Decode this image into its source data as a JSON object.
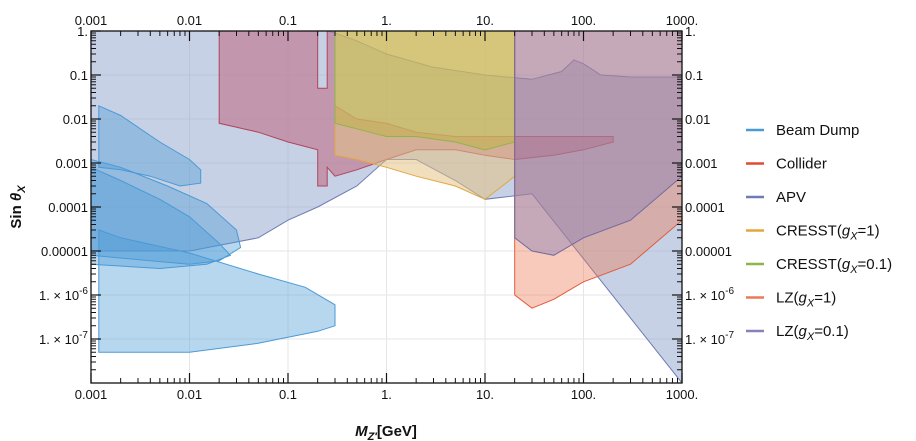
{
  "chart_data": {
    "type": "area",
    "xlabel": "M_Z'[GeV]",
    "ylabel": "Sin θ_X",
    "x_scale": "log",
    "y_scale": "log",
    "xlim": [
      0.001,
      1000
    ],
    "ylim": [
      1e-08,
      1
    ],
    "grid": true,
    "legend_position": "right",
    "x_ticks": [
      {
        "value": 0.001,
        "label": "0.001"
      },
      {
        "value": 0.01,
        "label": "0.01"
      },
      {
        "value": 0.1,
        "label": "0.1"
      },
      {
        "value": 1,
        "label": "1."
      },
      {
        "value": 10,
        "label": "10."
      },
      {
        "value": 100,
        "label": "100."
      },
      {
        "value": 1000,
        "label": "1000."
      }
    ],
    "y_ticks": [
      {
        "value": 1,
        "label": "1."
      },
      {
        "value": 0.1,
        "label": "0.1"
      },
      {
        "value": 0.01,
        "label": "0.01"
      },
      {
        "value": 0.001,
        "label": "0.001"
      },
      {
        "value": 0.0001,
        "label": "0.0001"
      },
      {
        "value": 1e-05,
        "label": "0.00001"
      },
      {
        "value": 1e-06,
        "label": "1. × 10^-6",
        "base": "1. × 10",
        "exp": "-6"
      },
      {
        "value": 1e-07,
        "label": "1. × 10^-7",
        "base": "1. × 10",
        "exp": "-7"
      }
    ],
    "legend": [
      {
        "name": "Beam Dump",
        "color": "#4a9ad6"
      },
      {
        "name": "Collider",
        "color": "#e34a33"
      },
      {
        "name": "APV",
        "color": "#6f7bb7"
      },
      {
        "name": "CRESST(g_X=1)",
        "color": "#e3a63f"
      },
      {
        "name": "CRESST(g_X=0.1)",
        "color": "#8fb548"
      },
      {
        "name": "LZ(g_X=1)",
        "color": "#ec7a56"
      },
      {
        "name": "LZ(g_X=0.1)",
        "color": "#8a80b5"
      }
    ],
    "series": [
      {
        "name": "APV",
        "fill": "#8fa3cc",
        "stroke": "#6f7bb7",
        "opacity": 0.5,
        "points": [
          [
            0.001,
            1
          ],
          [
            0.25,
            1
          ],
          [
            0.3,
            0.9
          ],
          [
            0.5,
            0.6
          ],
          [
            1,
            0.3
          ],
          [
            3,
            0.15
          ],
          [
            10,
            0.1
          ],
          [
            30,
            0.08
          ],
          [
            60,
            0.12
          ],
          [
            80,
            0.22
          ],
          [
            100,
            0.18
          ],
          [
            150,
            0.1
          ],
          [
            300,
            0.09
          ],
          [
            1000,
            0.09
          ],
          [
            1000,
            1e-08
          ],
          [
            30,
            0.0002
          ],
          [
            10,
            0.00015
          ],
          [
            5,
            0.0004
          ],
          [
            2,
            0.0012
          ],
          [
            1,
            0.0012
          ],
          [
            0.5,
            0.0003
          ],
          [
            0.2,
            0.0001
          ],
          [
            0.1,
            5e-05
          ],
          [
            0.05,
            2e-05
          ],
          [
            0.01,
            1e-05
          ],
          [
            0.005,
            1e-05
          ],
          [
            0.001,
            1e-05
          ]
        ]
      },
      {
        "name": "Beam Dump",
        "fill": "#4a9ad6",
        "stroke": "#4a9ad6",
        "opacity": 0.4,
        "points": [
          [
            0.0012,
            0.02
          ],
          [
            0.002,
            0.012
          ],
          [
            0.005,
            0.003
          ],
          [
            0.01,
            0.0012
          ],
          [
            0.013,
            0.0007
          ],
          [
            0.013,
            0.00035
          ],
          [
            0.008,
            0.0003
          ],
          [
            0.004,
            0.0005
          ],
          [
            0.002,
            0.0007
          ],
          [
            0.0012,
            0.0008
          ]
        ]
      },
      {
        "name": "Beam Dump",
        "fill": "#4a9ad6",
        "stroke": "#4a9ad6",
        "opacity": 0.4,
        "points": [
          [
            0.001,
            0.0012
          ],
          [
            0.002,
            0.0008
          ],
          [
            0.006,
            0.0003
          ],
          [
            0.015,
            0.00012
          ],
          [
            0.03,
            3e-05
          ],
          [
            0.033,
            1.2e-05
          ],
          [
            0.02,
            6e-06
          ],
          [
            0.01,
            5e-06
          ],
          [
            0.004,
            6e-06
          ],
          [
            0.001,
            8e-06
          ]
        ]
      },
      {
        "name": "Beam Dump",
        "fill": "#4a9ad6",
        "stroke": "#4a9ad6",
        "opacity": 0.4,
        "points": [
          [
            0.001,
            0.0008
          ],
          [
            0.002,
            0.0004
          ],
          [
            0.005,
            0.00015
          ],
          [
            0.01,
            6e-05
          ],
          [
            0.02,
            1.5e-05
          ],
          [
            0.026,
            8e-06
          ],
          [
            0.015,
            5e-06
          ],
          [
            0.005,
            4e-06
          ],
          [
            0.001,
            5e-06
          ]
        ]
      },
      {
        "name": "Beam Dump",
        "fill": "#4a9ad6",
        "stroke": "#4a9ad6",
        "opacity": 0.4,
        "points": [
          [
            0.0012,
            3e-05
          ],
          [
            0.002,
            2e-05
          ],
          [
            0.01,
            9e-06
          ],
          [
            0.05,
            3e-06
          ],
          [
            0.15,
            1.5e-06
          ],
          [
            0.3,
            6e-07
          ],
          [
            0.3,
            2e-07
          ],
          [
            0.2,
            1.5e-07
          ],
          [
            0.05,
            8e-08
          ],
          [
            0.01,
            5e-08
          ],
          [
            0.0012,
            5e-08
          ]
        ]
      },
      {
        "name": "Collider",
        "fill": "#c08299",
        "stroke": "#b0455c",
        "opacity": 0.75,
        "points": [
          [
            0.02,
            1
          ],
          [
            0.2,
            1
          ],
          [
            0.2,
            0.05
          ],
          [
            0.25,
            0.05
          ],
          [
            0.25,
            1
          ],
          [
            0.3,
            1
          ],
          [
            0.3,
            0.02
          ],
          [
            0.5,
            0.01
          ],
          [
            1,
            0.008
          ],
          [
            2,
            0.005
          ],
          [
            5,
            0.004
          ],
          [
            10,
            0.004
          ],
          [
            20,
            0.004
          ],
          [
            50,
            0.004
          ],
          [
            100,
            0.004
          ],
          [
            200,
            0.004
          ],
          [
            200,
            0.003
          ],
          [
            100,
            0.002
          ],
          [
            50,
            0.0015
          ],
          [
            20,
            0.0012
          ],
          [
            10,
            0.0015
          ],
          [
            5,
            0.002
          ],
          [
            2,
            0.002
          ],
          [
            1,
            0.0012
          ],
          [
            0.5,
            0.0007
          ],
          [
            0.3,
            0.0005
          ],
          [
            0.25,
            0.0008
          ],
          [
            0.25,
            0.0003
          ],
          [
            0.2,
            0.0003
          ],
          [
            0.2,
            0.002
          ],
          [
            0.1,
            0.003
          ],
          [
            0.05,
            0.005
          ],
          [
            0.02,
            0.008
          ]
        ]
      },
      {
        "name": "CRESST(g_X=1)",
        "fill": "#e3c285",
        "stroke": "#e3a63f",
        "opacity": 0.55,
        "points": [
          [
            0.3,
            1
          ],
          [
            20,
            1
          ],
          [
            20,
            0.0005
          ],
          [
            15,
            0.0003
          ],
          [
            10,
            0.00015
          ],
          [
            5,
            0.0003
          ],
          [
            2,
            0.0005
          ],
          [
            1,
            0.0008
          ],
          [
            0.5,
            0.0012
          ],
          [
            0.3,
            0.0015
          ]
        ]
      },
      {
        "name": "CRESST(g_X=0.1)",
        "fill": "#c0b247",
        "stroke": "#8fb548",
        "opacity": 0.55,
        "points": [
          [
            0.3,
            1
          ],
          [
            20,
            1
          ],
          [
            20,
            0.003
          ],
          [
            10,
            0.002
          ],
          [
            5,
            0.003
          ],
          [
            2,
            0.004
          ],
          [
            1,
            0.004
          ],
          [
            0.5,
            0.006
          ],
          [
            0.3,
            0.008
          ]
        ]
      },
      {
        "name": "LZ(g_X=1)",
        "fill": "#ec7a56",
        "stroke": "#e35b3a",
        "opacity": 0.4,
        "points": [
          [
            20,
            1
          ],
          [
            1000,
            1
          ],
          [
            1000,
            5e-05
          ],
          [
            300,
            5e-06
          ],
          [
            100,
            2e-06
          ],
          [
            50,
            8e-07
          ],
          [
            30,
            5e-07
          ],
          [
            20,
            1e-06
          ]
        ]
      },
      {
        "name": "LZ(g_X=0.1)",
        "fill": "#8a80b5",
        "stroke": "#6f6aa0",
        "opacity": 0.45,
        "points": [
          [
            20,
            1
          ],
          [
            1000,
            1
          ],
          [
            1000,
            0.0005
          ],
          [
            300,
            5e-05
          ],
          [
            100,
            2e-05
          ],
          [
            50,
            8e-06
          ],
          [
            30,
            1e-05
          ],
          [
            20,
            2e-05
          ]
        ]
      }
    ]
  }
}
